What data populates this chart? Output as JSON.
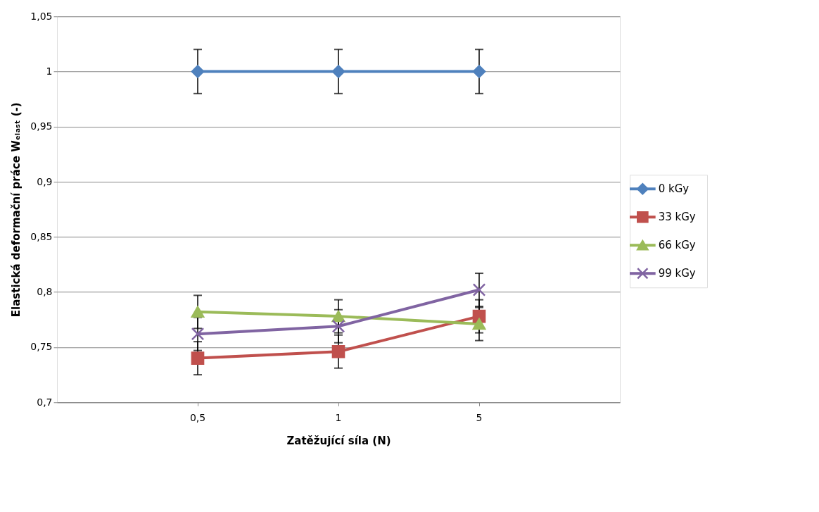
{
  "chart_data": {
    "type": "line",
    "xlabel": "Zatěžující síla (N)",
    "ylabel": "Elastická deformační práce Wₑₗₐₛₜ (-)",
    "categories": [
      "0,5",
      "1",
      "5"
    ],
    "series": [
      {
        "name": "0 kGy",
        "color": "#4f81bd",
        "marker": "diamond",
        "values": [
          1.0,
          1.0,
          1.0
        ],
        "errors": [
          0.02,
          0.02,
          0.02
        ]
      },
      {
        "name": "33 kGy",
        "color": "#c0504d",
        "marker": "square",
        "values": [
          0.74,
          0.746,
          0.778
        ],
        "errors": [
          0.015,
          0.015,
          0.015
        ]
      },
      {
        "name": "66 kGy",
        "color": "#9bbb59",
        "marker": "triangle",
        "values": [
          0.782,
          0.778,
          0.771
        ],
        "errors": [
          0.015,
          0.015,
          0.015
        ]
      },
      {
        "name": "99 kGy",
        "color": "#8064a2",
        "marker": "cross",
        "values": [
          0.762,
          0.769,
          0.802
        ],
        "errors": [
          0.015,
          0.015,
          0.015
        ]
      }
    ],
    "ylim": [
      0.7,
      1.05
    ],
    "yticks": [
      {
        "value": 0.7,
        "label": "0,7"
      },
      {
        "value": 0.75,
        "label": "0,75"
      },
      {
        "value": 0.8,
        "label": "0,8"
      },
      {
        "value": 0.85,
        "label": "0,85"
      },
      {
        "value": 0.9,
        "label": "0,9"
      },
      {
        "value": 0.95,
        "label": "0,95"
      },
      {
        "value": 1,
        "label": "1"
      },
      {
        "value": 1.05,
        "label": "1,05"
      }
    ],
    "grid": "y",
    "legend": "right"
  }
}
